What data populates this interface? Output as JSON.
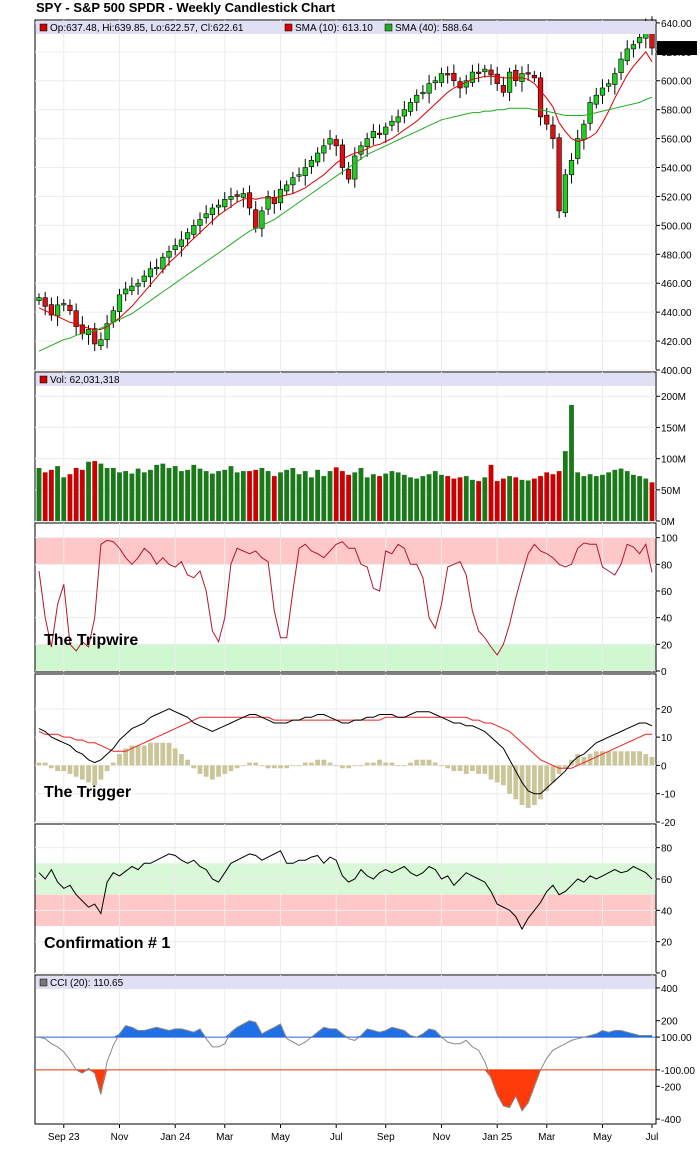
{
  "title": "SPY - S&P 500 SPDR - Weekly Candlestick Chart",
  "chart_data": [
    {
      "type": "candlestick",
      "legend": [
        {
          "text": "Op:637.48, Hi:639.85, Lo:622.57, Cl:622.61",
          "color": "#cc0000"
        },
        {
          "text": "SMA (10): 613.10",
          "color": "#dd0000"
        },
        {
          "text": "SMA (40): 588.64",
          "color": "#22aa22"
        }
      ],
      "last_price_label": "622.61",
      "yticks": [
        "400.00",
        "420.00",
        "440.00",
        "460.00",
        "480.00",
        "500.00",
        "520.00",
        "540.00",
        "560.00",
        "580.00",
        "600.00",
        "620.00",
        "640.00"
      ],
      "ylim": [
        400,
        642
      ],
      "x_labels": [
        "Sep 23",
        "Nov",
        "Jan 24",
        "Mar",
        "May",
        "Jul",
        "Sep",
        "Nov",
        "Jan 25",
        "Mar",
        "May",
        "Jul"
      ],
      "close": [
        450,
        444,
        438,
        445,
        446,
        441,
        430,
        425,
        428,
        418,
        421,
        432,
        441,
        452,
        456,
        458,
        460,
        465,
        470,
        471,
        478,
        482,
        486,
        490,
        495,
        500,
        504,
        508,
        512,
        514,
        518,
        520,
        520,
        522,
        512,
        498,
        510,
        520,
        515,
        525,
        528,
        533,
        535,
        540,
        545,
        550,
        555,
        560,
        555,
        540,
        532,
        548,
        555,
        560,
        565,
        563,
        568,
        572,
        575,
        580,
        585,
        590,
        592,
        598,
        600,
        605,
        604,
        600,
        595,
        600,
        606,
        605,
        608,
        604,
        598,
        592,
        606,
        600,
        605,
        605,
        602,
        575,
        570,
        560,
        510,
        535,
        545,
        560,
        570,
        585,
        590,
        595,
        598,
        605,
        615,
        622,
        625,
        630,
        638,
        622.61
      ],
      "sma10": [
        443,
        441,
        439,
        437,
        435,
        433,
        432,
        430,
        429,
        428,
        428,
        430,
        433,
        436,
        440,
        444,
        449,
        454,
        459,
        464,
        469,
        474,
        478,
        482,
        487,
        491,
        495,
        499,
        503,
        507,
        510,
        513,
        516,
        518,
        519,
        518,
        519,
        519,
        519,
        520,
        521,
        522,
        524,
        526,
        529,
        532,
        535,
        539,
        543,
        546,
        548,
        550,
        551,
        553,
        555,
        556,
        558,
        560,
        563,
        566,
        569,
        572,
        576,
        580,
        584,
        588,
        592,
        595,
        597,
        599,
        601,
        602,
        603,
        603,
        603,
        602,
        602,
        602,
        602,
        601,
        598,
        593,
        588,
        582,
        571,
        565,
        560,
        558,
        559,
        561,
        564,
        571,
        579,
        588,
        596,
        604,
        610,
        615,
        620,
        613.1
      ],
      "sma40": [
        413,
        415,
        417,
        419,
        421,
        422,
        424,
        425,
        426,
        427,
        429,
        431,
        433,
        435,
        437,
        439,
        442,
        445,
        448,
        451,
        454,
        457,
        460,
        463,
        466,
        469,
        472,
        475,
        478,
        481,
        484,
        487,
        490,
        493,
        496,
        498,
        500,
        502,
        504,
        507,
        510,
        513,
        516,
        519,
        522,
        525,
        528,
        531,
        534,
        537,
        540,
        543,
        546,
        549,
        551,
        553,
        555,
        557,
        559,
        561,
        563,
        565,
        567,
        569,
        571,
        573,
        574,
        575,
        576,
        577,
        578,
        578,
        579,
        579,
        580,
        580,
        581,
        581,
        581,
        581,
        580,
        580,
        579,
        578,
        577,
        576,
        576,
        576,
        576,
        577,
        578,
        579,
        580,
        581,
        582,
        583,
        584,
        585,
        587,
        588.64
      ]
    },
    {
      "type": "bar",
      "legend": [
        {
          "text": "Vol: 62,031,318",
          "color": "#cc0000"
        }
      ],
      "yticks": [
        "0M",
        "50M",
        "100M",
        "150M",
        "200M"
      ],
      "ylim": [
        0,
        210
      ],
      "values": [
        85,
        78,
        82,
        88,
        70,
        75,
        85,
        82,
        95,
        96,
        92,
        85,
        85,
        78,
        80,
        76,
        84,
        78,
        82,
        90,
        92,
        85,
        88,
        80,
        82,
        90,
        84,
        80,
        76,
        80,
        82,
        88,
        78,
        80,
        80,
        82,
        85,
        80,
        72,
        78,
        82,
        85,
        75,
        80,
        70,
        82,
        72,
        80,
        86,
        80,
        74,
        78,
        85,
        70,
        75,
        72,
        76,
        80,
        78,
        74,
        70,
        68,
        72,
        75,
        80,
        74,
        72,
        68,
        70,
        72,
        66,
        64,
        70,
        90,
        64,
        68,
        72,
        70,
        66,
        65,
        68,
        72,
        78,
        75,
        80,
        88,
        92,
        78,
        72,
        75,
        72,
        74,
        78,
        82,
        84,
        80,
        74,
        72,
        68,
        62
      ],
      "spike_values": [
        {
          "index": 86,
          "value": 186
        },
        {
          "index": 85,
          "value": 112
        }
      ]
    },
    {
      "type": "line",
      "annotation": "The Tripwire",
      "yticks": [
        "0",
        "20",
        "40",
        "60",
        "80",
        "100"
      ],
      "ylim": [
        0,
        105
      ],
      "zones": [
        {
          "from": 80,
          "to": 100,
          "color": "#ffc8c8"
        },
        {
          "from": 0,
          "to": 20,
          "color": "#d0f8d0"
        }
      ],
      "values": [
        75,
        40,
        18,
        50,
        65,
        20,
        15,
        22,
        18,
        40,
        95,
        98,
        97,
        92,
        85,
        80,
        85,
        92,
        88,
        80,
        85,
        80,
        78,
        82,
        72,
        70,
        75,
        60,
        30,
        22,
        40,
        80,
        92,
        90,
        88,
        90,
        85,
        82,
        45,
        25,
        25,
        60,
        92,
        95,
        90,
        88,
        85,
        90,
        95,
        97,
        92,
        92,
        80,
        78,
        62,
        60,
        90,
        88,
        95,
        92,
        80,
        80,
        70,
        40,
        32,
        50,
        78,
        80,
        82,
        72,
        45,
        30,
        25,
        18,
        12,
        20,
        35,
        55,
        72,
        88,
        95,
        90,
        88,
        85,
        80,
        78,
        80,
        92,
        96,
        95,
        95,
        78,
        75,
        72,
        80,
        95,
        93,
        88,
        95,
        74
      ]
    },
    {
      "type": "line",
      "annotation": "The Trigger",
      "yticks": [
        "-20",
        "-10",
        "0",
        "10",
        "20"
      ],
      "ylim": [
        -20,
        21
      ],
      "macd": [
        13,
        12,
        10,
        9,
        8,
        7,
        5,
        4,
        2,
        1,
        2,
        4,
        6,
        9,
        11,
        13,
        14,
        15,
        17,
        18,
        19,
        20,
        19,
        18,
        17,
        15,
        14,
        13,
        12,
        13,
        14,
        15,
        16,
        17,
        18,
        18,
        17,
        16,
        15,
        15,
        15,
        16,
        16,
        17,
        17,
        18,
        18,
        17,
        16,
        15,
        15,
        16,
        16,
        17,
        17,
        18,
        18,
        18,
        17,
        17,
        18,
        19,
        19,
        19,
        18,
        17,
        16,
        15,
        15,
        14,
        14,
        13,
        12,
        10,
        8,
        6,
        2,
        -2,
        -6,
        -9,
        -10,
        -10,
        -8,
        -6,
        -4,
        -2,
        1,
        3,
        4,
        6,
        8,
        9,
        10,
        11,
        12,
        13,
        14,
        15,
        15,
        14
      ],
      "signal": [
        12,
        11,
        11,
        11,
        10,
        10,
        9,
        9,
        8,
        8,
        7,
        6,
        5,
        5,
        5,
        6,
        7,
        8,
        9,
        10,
        11,
        12,
        13,
        14,
        15,
        16,
        17,
        17,
        17,
        17,
        17,
        17,
        17,
        17,
        17,
        17,
        17,
        17,
        16,
        16,
        16,
        16,
        16,
        16,
        16,
        16,
        16,
        16,
        16,
        16,
        16,
        16,
        16,
        16,
        16,
        16,
        17,
        17,
        17,
        17,
        17,
        17,
        17,
        17,
        17,
        17,
        17,
        17,
        17,
        17,
        16,
        16,
        15,
        15,
        14,
        13,
        12,
        10,
        8,
        6,
        4,
        2,
        1,
        0,
        -1,
        -1,
        -1,
        0,
        1,
        2,
        3,
        4,
        5,
        6,
        7,
        8,
        9,
        10,
        11,
        11
      ],
      "histogram": [
        1,
        1,
        -1,
        -2,
        -2,
        -3,
        -4,
        -5,
        -6,
        -7,
        -5,
        -2,
        1,
        4,
        6,
        7,
        7,
        7,
        8,
        8,
        8,
        8,
        6,
        4,
        2,
        -1,
        -3,
        -4,
        -5,
        -4,
        -3,
        -2,
        -1,
        0,
        1,
        1,
        0,
        -1,
        -1,
        -1,
        -1,
        0,
        0,
        1,
        1,
        2,
        2,
        1,
        0,
        -1,
        -1,
        0,
        0,
        1,
        1,
        2,
        1,
        1,
        0,
        0,
        1,
        2,
        2,
        2,
        1,
        0,
        -1,
        -2,
        -2,
        -3,
        -2,
        -3,
        -3,
        -5,
        -6,
        -7,
        -10,
        -12,
        -14,
        -15,
        -14,
        -12,
        -9,
        -6,
        -3,
        -1,
        2,
        4,
        3,
        4,
        5,
        5,
        5,
        5,
        5,
        5,
        5,
        5,
        4,
        3
      ]
    },
    {
      "type": "line",
      "annotation": "Confirmation # 1",
      "yticks": [
        "0",
        "20",
        "40",
        "60",
        "80"
      ],
      "ylim": [
        0,
        90
      ],
      "zones": [
        {
          "from": 50,
          "to": 70,
          "color": "#d8f8d8"
        },
        {
          "from": 30,
          "to": 50,
          "color": "#ffc8c8"
        }
      ],
      "values": [
        64,
        60,
        66,
        58,
        54,
        56,
        50,
        46,
        42,
        44,
        38,
        58,
        64,
        62,
        65,
        68,
        66,
        70,
        70,
        72,
        74,
        76,
        75,
        72,
        70,
        72,
        68,
        66,
        60,
        58,
        64,
        70,
        72,
        74,
        76,
        75,
        72,
        74,
        76,
        78,
        70,
        70,
        72,
        72,
        74,
        75,
        70,
        74,
        72,
        62,
        58,
        60,
        66,
        62,
        60,
        64,
        66,
        64,
        66,
        68,
        64,
        62,
        64,
        68,
        66,
        60,
        62,
        56,
        60,
        64,
        62,
        60,
        58,
        52,
        44,
        42,
        40,
        36,
        28,
        35,
        40,
        45,
        52,
        56,
        50,
        52,
        56,
        60,
        58,
        62,
        60,
        62,
        64,
        66,
        64,
        65,
        68,
        66,
        64,
        60
      ]
    },
    {
      "type": "area",
      "legend": [
        {
          "text": "CCI (20): 110.65",
          "color": "#777777"
        }
      ],
      "yticks": [
        "-400",
        "-200",
        "-100.00",
        "100.00",
        "200",
        "400"
      ],
      "ylim": [
        -430,
        430
      ],
      "levels": [
        {
          "value": 100,
          "label": "100.00",
          "color": "#2266dd"
        },
        {
          "value": -100,
          "label": "-100.00",
          "color": "#ee3300"
        }
      ],
      "values": [
        100,
        90,
        60,
        40,
        10,
        -40,
        -100,
        -120,
        -90,
        -120,
        -250,
        -50,
        50,
        120,
        170,
        160,
        140,
        140,
        150,
        160,
        150,
        140,
        150,
        150,
        140,
        130,
        150,
        90,
        40,
        40,
        60,
        130,
        160,
        180,
        200,
        190,
        120,
        140,
        160,
        180,
        90,
        70,
        50,
        70,
        100,
        130,
        160,
        150,
        150,
        120,
        90,
        80,
        110,
        150,
        140,
        130,
        140,
        160,
        150,
        140,
        110,
        100,
        120,
        150,
        140,
        100,
        70,
        60,
        60,
        80,
        40,
        20,
        -50,
        -150,
        -250,
        -320,
        -330,
        -260,
        -350,
        -300,
        -200,
        -100,
        -30,
        20,
        40,
        60,
        80,
        90,
        100,
        110,
        120,
        140,
        130,
        140,
        140,
        130,
        120,
        110,
        110,
        110.65
      ]
    }
  ],
  "labels": {
    "tripwire": "The Tripwire",
    "trigger": "The Trigger",
    "confirmation": "Confirmation # 1"
  },
  "colors": {
    "up": "#22cc22",
    "down": "#dd1111",
    "vol_up": "#1a7a1a",
    "vol_down": "#cc0000",
    "hist": "#cbc59a",
    "legend_bg": "#e0e0f4",
    "rsi_line": "#b01830"
  }
}
